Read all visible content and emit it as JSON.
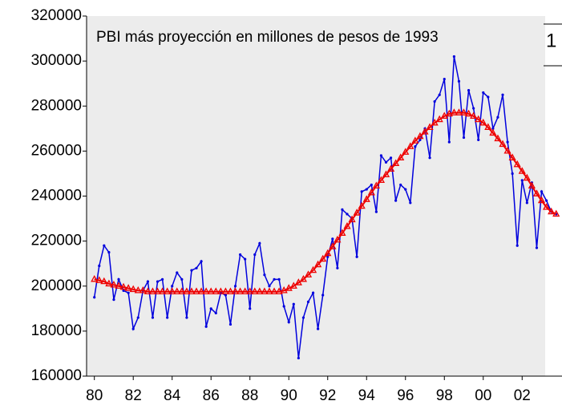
{
  "chart_data": {
    "type": "line",
    "title": "PBI más proyección en millones de pesos de 1993",
    "annotation": "1",
    "x": [
      1980,
      1980.25,
      1980.5,
      1980.75,
      1981,
      1981.25,
      1981.5,
      1981.75,
      1982,
      1982.25,
      1982.5,
      1982.75,
      1983,
      1983.25,
      1983.5,
      1983.75,
      1984,
      1984.25,
      1984.5,
      1984.75,
      1985,
      1985.25,
      1985.5,
      1985.75,
      1986,
      1986.25,
      1986.5,
      1986.75,
      1987,
      1987.25,
      1987.5,
      1987.75,
      1988,
      1988.25,
      1988.5,
      1988.75,
      1989,
      1989.25,
      1989.5,
      1989.75,
      1990,
      1990.25,
      1990.5,
      1990.75,
      1991,
      1991.25,
      1991.5,
      1991.75,
      1992,
      1992.25,
      1992.5,
      1992.75,
      1993,
      1993.25,
      1993.5,
      1993.75,
      1994,
      1994.25,
      1994.5,
      1994.75,
      1995,
      1995.25,
      1995.5,
      1995.75,
      1996,
      1996.25,
      1996.5,
      1996.75,
      1997,
      1997.25,
      1997.5,
      1997.75,
      1998,
      1998.25,
      1998.5,
      1998.75,
      1999,
      1999.25,
      1999.5,
      1999.75,
      2000,
      2000.25,
      2000.5,
      2000.75,
      2001,
      2001.25,
      2001.5,
      2001.75,
      2002,
      2002.25,
      2002.5,
      2002.75,
      2003,
      2003.25,
      2003.5,
      2003.75
    ],
    "series": [
      {
        "color": "#0000dd",
        "marker": "circle",
        "values": [
          195000,
          209000,
          218000,
          215000,
          194000,
          203000,
          198000,
          197000,
          181000,
          186000,
          198000,
          202000,
          186000,
          202000,
          203000,
          186000,
          200000,
          206000,
          203000,
          186000,
          207000,
          208000,
          211000,
          182000,
          190000,
          188000,
          197000,
          196000,
          183000,
          200000,
          214000,
          212000,
          190000,
          214000,
          219000,
          205000,
          200000,
          203000,
          203000,
          191000,
          184000,
          192000,
          168000,
          186000,
          193000,
          197000,
          181000,
          196000,
          213000,
          221000,
          208000,
          234000,
          232000,
          230000,
          213000,
          242000,
          243000,
          245000,
          233000,
          258000,
          255000,
          257000,
          238000,
          245000,
          243000,
          237000,
          262000,
          265000,
          270000,
          257000,
          282000,
          285000,
          292000,
          264000,
          302000,
          291000,
          266000,
          287000,
          279000,
          265000,
          286000,
          284000,
          270000,
          275000,
          285000,
          264000,
          250000,
          218000,
          247000,
          237000,
          246000,
          217000,
          242000,
          238000,
          233000,
          232000
        ]
      },
      {
        "color": "#ee0000",
        "marker": "triangle",
        "values": [
          203000,
          202500,
          202000,
          201000,
          200500,
          200000,
          199500,
          199000,
          198500,
          198000,
          198000,
          197500,
          197500,
          197500,
          197500,
          197500,
          197500,
          197500,
          197500,
          197500,
          197500,
          197500,
          197500,
          197500,
          197500,
          197500,
          197500,
          197500,
          197500,
          197500,
          197500,
          197500,
          197500,
          197500,
          197500,
          197500,
          197500,
          197500,
          197500,
          198000,
          199000,
          200000,
          201500,
          203000,
          205000,
          207000,
          209500,
          212000,
          214500,
          217500,
          220500,
          223500,
          226500,
          229500,
          232500,
          235500,
          238500,
          241500,
          244500,
          247000,
          249500,
          252000,
          254500,
          257000,
          259500,
          262000,
          264500,
          266500,
          268500,
          270500,
          272500,
          274000,
          275500,
          276500,
          277000,
          277000,
          277000,
          276500,
          275500,
          274000,
          272500,
          270500,
          268000,
          265500,
          263000,
          260000,
          257000,
          254000,
          251000,
          248000,
          244500,
          241000,
          238000,
          235000,
          233000,
          232000
        ]
      }
    ],
    "xlim": [
      1979.6,
      2004.05
    ],
    "xticks": [
      {
        "value": 1980,
        "label": "80"
      },
      {
        "value": 1982,
        "label": "82"
      },
      {
        "value": 1984,
        "label": "84"
      },
      {
        "value": 1986,
        "label": "86"
      },
      {
        "value": 1988,
        "label": "88"
      },
      {
        "value": 1990,
        "label": "90"
      },
      {
        "value": 1992,
        "label": "92"
      },
      {
        "value": 1994,
        "label": "94"
      },
      {
        "value": 1996,
        "label": "96"
      },
      {
        "value": 1998,
        "label": "98"
      },
      {
        "value": 2000,
        "label": "00"
      },
      {
        "value": 2002,
        "label": "02"
      }
    ],
    "ylim": [
      160000,
      320000
    ],
    "yticks": [
      160000,
      180000,
      200000,
      220000,
      240000,
      260000,
      280000,
      300000,
      320000
    ]
  }
}
